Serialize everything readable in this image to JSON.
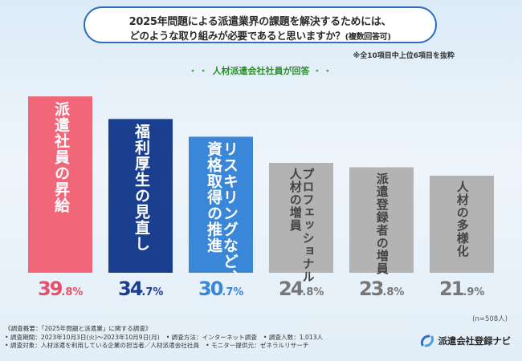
{
  "title": {
    "line1": "2025年問題による派遣業界の課題を解決するためには、",
    "line2": "どのような取り組みが必要であると思いますか？",
    "line2_note": "(複数回答可)"
  },
  "note": "※全10項目中上位6項目を抜粋",
  "subtitle": "人材派遣会社社員が回答",
  "subtitle_dots": "・・",
  "chart_data": {
    "type": "bar",
    "title": "2025年問題による派遣業界の課題を解決するためには、どのような取り組みが必要であると思いますか？(複数回答可)",
    "categories": [
      "派遣社員の昇給",
      "福利厚生の見直し",
      "リスキリングなど、資格取得の推進",
      "プロフェッショナル人材の増員",
      "派遣登録者の増員",
      "人材の多様化"
    ],
    "values": [
      39.8,
      34.7,
      30.7,
      24.8,
      23.8,
      21.9
    ],
    "unit": "%",
    "ylim": [
      0,
      42
    ],
    "colors": [
      "#f2667a",
      "#1a3f8e",
      "#3a86d8",
      "#b3b3b3",
      "#b3b3b3",
      "#b3b3b3"
    ],
    "label_lines": [
      [
        "派遣社員の昇給"
      ],
      [
        "福利厚生の見直し"
      ],
      [
        "リスキリングなど、",
        "資格取得の推進"
      ],
      [
        "プロフェッショナル",
        "人材の増員"
      ],
      [
        "派遣登録者の増員"
      ],
      [
        "人材の多様化"
      ]
    ],
    "value_labels": [
      {
        "int": "39",
        "dec": ".8%"
      },
      {
        "int": "34",
        "dec": ".7%"
      },
      {
        "int": "30",
        "dec": ".7%"
      },
      {
        "int": "24",
        "dec": ".8%"
      },
      {
        "int": "23",
        "dec": ".8%"
      },
      {
        "int": "21",
        "dec": ".9%"
      }
    ],
    "value_colors": [
      "#e8506a",
      "#1a3f8e",
      "#3a86d8",
      "#777777",
      "#777777",
      "#777777"
    ],
    "n": "(n=508人)"
  },
  "footer": {
    "heading": "《調査概要：「2025年問題と派遣業」に関する調査》",
    "period": "• 調査期間：2023年10月3日(火)〜2023年10月9日(月)",
    "method": "• 調査方法：インターネット調査",
    "count": "• 調査人数：1,013人",
    "target": "• 調査対象：人材派遣を利用している企業の担当者／人材派遣会社社員",
    "provider": "• モニター提供元：ゼネラルリサーチ"
  },
  "logo": {
    "text": "派遣会社登録ナビ",
    "icon": "logo-mark-icon"
  }
}
